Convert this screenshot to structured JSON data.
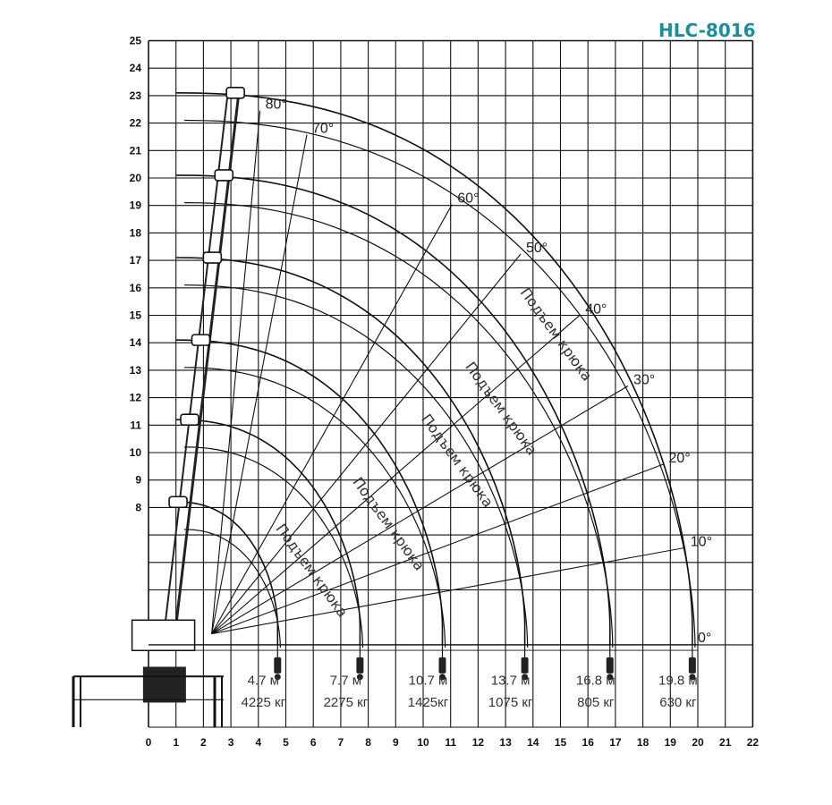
{
  "title": "HLC-8016",
  "colors": {
    "title": "#1a8f9c",
    "grid": "#111111",
    "curve": "#111111",
    "text": "#333333"
  },
  "chart_data": {
    "type": "load-range-diagram",
    "x_ticks": [
      "0",
      "1",
      "2",
      "3",
      "4",
      "5",
      "6",
      "7",
      "8",
      "9",
      "10",
      "11",
      "12",
      "13",
      "14",
      "15",
      "16",
      "17",
      "18",
      "19",
      "20",
      "21",
      "22"
    ],
    "y_ticks": [
      "8",
      "9",
      "10",
      "11",
      "12",
      "13",
      "14",
      "15",
      "16",
      "17",
      "18",
      "19",
      "20",
      "21",
      "22",
      "23",
      "24",
      "25"
    ],
    "xlim": [
      0,
      22
    ],
    "ylim": [
      0,
      25
    ],
    "angles": [
      {
        "label": "80°",
        "deg": 80
      },
      {
        "label": "70°",
        "deg": 70
      },
      {
        "label": "60°",
        "deg": 60
      },
      {
        "label": "50°",
        "deg": 50
      },
      {
        "label": "40°",
        "deg": 40
      },
      {
        "label": "30°",
        "deg": 30
      },
      {
        "label": "20°",
        "deg": 20
      },
      {
        "label": "10°",
        "deg": 10
      },
      {
        "label": "0°",
        "deg": 0
      }
    ],
    "booms": [
      {
        "reach_label": "4.7 м",
        "load_label": "4225 кг",
        "reach": 4.7,
        "load": 4225,
        "top_y": 8.2
      },
      {
        "reach_label": "7.7 м",
        "load_label": "2275 кг",
        "reach": 7.7,
        "load": 2275,
        "top_y": 11.2
      },
      {
        "reach_label": "10.7 м",
        "load_label": "1425кг",
        "reach": 10.7,
        "load": 1425,
        "top_y": 14.1
      },
      {
        "reach_label": "13.7 м",
        "load_label": "1075 кг",
        "reach": 13.7,
        "load": 1075,
        "top_y": 17.1
      },
      {
        "reach_label": "16.8 м",
        "load_label": "805 кг",
        "reach": 16.8,
        "load": 805,
        "top_y": 20.1
      },
      {
        "reach_label": "19.8 м",
        "load_label": "630 кг",
        "reach": 19.8,
        "load": 630,
        "top_y": 23.1
      }
    ],
    "hook_label": "Подъем крюка"
  }
}
